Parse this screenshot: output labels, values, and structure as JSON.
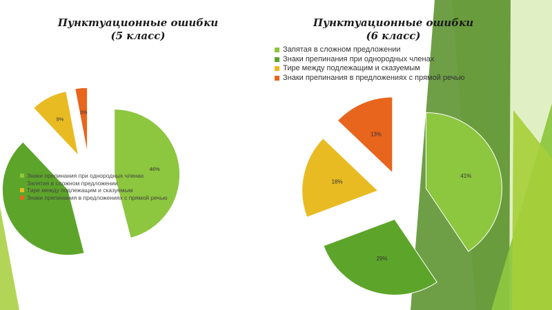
{
  "chart_data": [
    {
      "type": "pie",
      "title": [
        "Пунктуационные ошибки",
        "(5 класс)"
      ],
      "slices": [
        {
          "label": "Знаки препинания при однородных членах",
          "value": 46,
          "data_label": "46%",
          "color": "#8dc63f"
        },
        {
          "label": "Запятая в сложном предложении",
          "value": 42,
          "data_label": "",
          "color": "#5da52a"
        },
        {
          "label": "Тире между подлежащим и сказуемым",
          "value": 9,
          "data_label": "9%",
          "color": "#e8bb23"
        },
        {
          "label": "Знаки препинания в предложениях с прямой речью",
          "value": 3,
          "data_label": "3%",
          "color": "#e8651d"
        }
      ],
      "legend": [
        {
          "label": "Знаки препинания при однородных членах",
          "color": "#8dc63f"
        },
        {
          "label": "Запятая в сложном предложении",
          "color": "#5da52a"
        },
        {
          "label": "Тире между подлежащим и сказуемым",
          "color": "#e8bb23"
        },
        {
          "label": "Знаки препинания в предложениях с прямой речью",
          "color": "#e8651d"
        }
      ],
      "exploded": true,
      "legend_position": "overlapping-left"
    },
    {
      "type": "pie",
      "title": [
        "Пунктуационные ошибки",
        "(6 класс)"
      ],
      "slices": [
        {
          "label": "Запятая в сложном предложении",
          "value": 41,
          "data_label": "41%",
          "color": "#8dc63f"
        },
        {
          "label": "Знаки препинания при однородных членах",
          "value": 29,
          "data_label": "29%",
          "color": "#5da52a"
        },
        {
          "label": "Тире между подлежащим и сказуемым",
          "value": 18,
          "data_label": "18%",
          "color": "#e8bb23"
        },
        {
          "label": "Знаки препинания в предложениях с прямой речью",
          "value": 13,
          "data_label": "13%",
          "color": "#e8651d"
        }
      ],
      "legend": [
        {
          "label": "Запятая в сложном предложении",
          "color": "#8dc63f"
        },
        {
          "label": "Знаки препинания при однородных членах",
          "color": "#5da52a"
        },
        {
          "label": "Тире между подлежащим и сказуемым",
          "color": "#e8bb23"
        },
        {
          "label": "Знаки препинания в предложениях с прямой речью",
          "color": "#e8651d"
        }
      ],
      "exploded": true,
      "legend_position": "top"
    }
  ],
  "theme": {
    "accent_light": "#a6ce39",
    "accent_dark": "#4e8a1e"
  }
}
